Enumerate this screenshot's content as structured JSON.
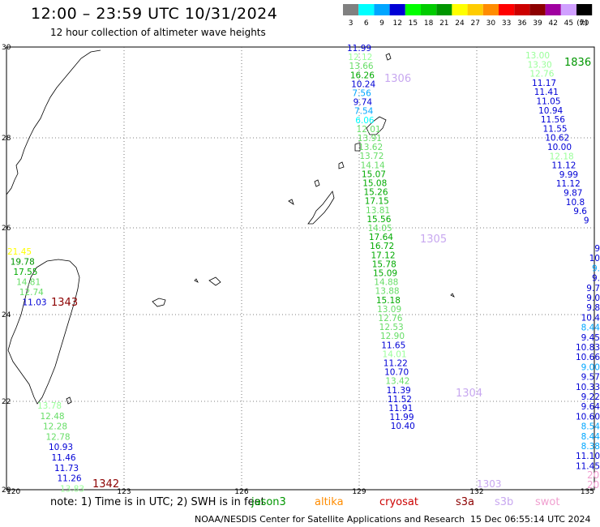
{
  "header": {
    "title": "12:00 – 23:59 UTC 10/31/2024",
    "subtitle": "12 hour collection of altimeter wave heights"
  },
  "legend": {
    "unit": "(ft)",
    "bins": [
      {
        "label": "3",
        "color": "#808080"
      },
      {
        "label": "6",
        "color": "#00ffff"
      },
      {
        "label": "9",
        "color": "#00a6ff"
      },
      {
        "label": "12",
        "color": "#0000d6"
      },
      {
        "label": "15",
        "color": "#00ff00"
      },
      {
        "label": "18",
        "color": "#00cc00"
      },
      {
        "label": "21",
        "color": "#009600"
      },
      {
        "label": "24",
        "color": "#ffff00"
      },
      {
        "label": "27",
        "color": "#ffcc00"
      },
      {
        "label": "30",
        "color": "#ff8c00"
      },
      {
        "label": "33",
        "color": "#ff0000"
      },
      {
        "label": "36",
        "color": "#cc0000"
      },
      {
        "label": "39",
        "color": "#8c0000"
      },
      {
        "label": "42",
        "color": "#a000a0"
      },
      {
        "label": "45",
        "color": "#d0a0ff"
      },
      {
        "label": "70",
        "color": "#000000"
      }
    ]
  },
  "axes": {
    "x_ticks": [
      "120",
      "123",
      "126",
      "129",
      "132",
      "135"
    ],
    "y_ticks": [
      "30",
      "28",
      "26",
      "24",
      "22",
      "20"
    ]
  },
  "passes": [
    {
      "name": "track-129",
      "readings": [
        [
          "11.99",
          "#0000d6"
        ],
        [
          "12.12",
          "#99ff99"
        ],
        [
          "13.66",
          "#66dd66"
        ],
        [
          "16.26",
          "#00aa00"
        ],
        [
          "10.24",
          "#0000d6"
        ],
        [
          "7.56",
          "#00a6ff"
        ],
        [
          "9.74",
          "#0000d6"
        ],
        [
          "7.54",
          "#00a6ff"
        ],
        [
          "6.06",
          "#00ffff"
        ],
        [
          "12.01",
          "#66dd66"
        ],
        [
          "13.91",
          "#66dd66"
        ],
        [
          "13.62",
          "#66dd66"
        ],
        [
          "13.72",
          "#66dd66"
        ],
        [
          "14.14",
          "#66dd66"
        ],
        [
          "15.07",
          "#00aa00"
        ],
        [
          "15.08",
          "#00aa00"
        ],
        [
          "15.26",
          "#00aa00"
        ],
        [
          "17.15",
          "#00aa00"
        ],
        [
          "13.81",
          "#66dd66"
        ],
        [
          "15.56",
          "#00aa00"
        ],
        [
          "14.05",
          "#66dd66"
        ],
        [
          "17.64",
          "#00aa00"
        ],
        [
          "16.72",
          "#00aa00"
        ],
        [
          "17.12",
          "#00aa00"
        ],
        [
          "15.78",
          "#00aa00"
        ],
        [
          "15.09",
          "#00aa00"
        ],
        [
          "14.88",
          "#66dd66"
        ],
        [
          "13.88",
          "#66dd66"
        ],
        [
          "15.18",
          "#00aa00"
        ],
        [
          "13.09",
          "#66dd66"
        ],
        [
          "12.76",
          "#66dd66"
        ],
        [
          "12.53",
          "#66dd66"
        ],
        [
          "12.90",
          "#66dd66"
        ],
        [
          "11.65",
          "#0000d6"
        ],
        [
          "14.01",
          "#99ff99"
        ],
        [
          "11.22",
          "#0000d6"
        ],
        [
          "10.70",
          "#0000d6"
        ],
        [
          "13.42",
          "#66dd66"
        ],
        [
          "11.39",
          "#0000d6"
        ],
        [
          "11.52",
          "#0000d6"
        ],
        [
          "11.91",
          "#0000d6"
        ],
        [
          "11.99",
          "#0000d6"
        ],
        [
          "10.40",
          "#0000d6"
        ]
      ]
    },
    {
      "name": "track-133",
      "readings": [
        [
          "13.00",
          "#99ff99"
        ],
        [
          "13.30",
          "#99ff99"
        ],
        [
          "12.76",
          "#99ff99"
        ],
        [
          "11.17",
          "#0000d6"
        ],
        [
          "11.41",
          "#0000d6"
        ],
        [
          "11.05",
          "#0000d6"
        ],
        [
          "10.94",
          "#0000d6"
        ],
        [
          "11.56",
          "#0000d6"
        ],
        [
          "11.55",
          "#0000d6"
        ],
        [
          "10.62",
          "#0000d6"
        ],
        [
          "10.00",
          "#0000d6"
        ],
        [
          "12.18",
          "#99ff99"
        ],
        [
          "11.12",
          "#0000d6"
        ],
        [
          "9.99",
          "#0000d6"
        ],
        [
          "11.12",
          "#0000d6"
        ],
        [
          "9.87",
          "#0000d6"
        ],
        [
          "10.8",
          "#0000d6"
        ],
        [
          "9.6",
          "#0000d6"
        ],
        [
          "9",
          "#0000d6"
        ]
      ]
    },
    {
      "name": "track-135",
      "readings": [
        [
          "9",
          "#0000d6"
        ],
        [
          "10",
          "#0000d6"
        ],
        [
          "9.",
          "#00a6ff"
        ],
        [
          "9.",
          "#0000d6"
        ],
        [
          "9.7",
          "#0000d6"
        ],
        [
          "9.0",
          "#0000d6"
        ],
        [
          "9.8",
          "#0000d6"
        ],
        [
          "10.4",
          "#0000d6"
        ],
        [
          "8.44",
          "#00a6ff"
        ],
        [
          "9.45",
          "#0000d6"
        ],
        [
          "10.83",
          "#0000d6"
        ],
        [
          "10.66",
          "#0000d6"
        ],
        [
          "9.00",
          "#00a6ff"
        ],
        [
          "9.57",
          "#0000d6"
        ],
        [
          "10.33",
          "#0000d6"
        ],
        [
          "9.22",
          "#0000d6"
        ],
        [
          "9.64",
          "#0000d6"
        ],
        [
          "10.60",
          "#0000d6"
        ],
        [
          "8.54",
          "#00a6ff"
        ],
        [
          "8.44",
          "#00a6ff"
        ],
        [
          "8.38",
          "#00a6ff"
        ],
        [
          "11.10",
          "#0000d6"
        ],
        [
          "11.45",
          "#0000d6"
        ]
      ]
    },
    {
      "name": "track-121-north",
      "readings": [
        [
          "21.45",
          "#ffff00"
        ],
        [
          "19.78",
          "#009600"
        ],
        [
          "17.55",
          "#00aa00"
        ],
        [
          "14.81",
          "#66dd66"
        ],
        [
          "12.74",
          "#66dd66"
        ],
        [
          "11.03",
          "#0000d6"
        ]
      ]
    },
    {
      "name": "track-121-south",
      "readings": [
        [
          "13.78",
          "#99ff99"
        ],
        [
          "12.48",
          "#66dd66"
        ],
        [
          "12.28",
          "#66dd66"
        ],
        [
          "12.78",
          "#66dd66"
        ],
        [
          "10.93",
          "#0000d6"
        ],
        [
          "11.46",
          "#0000d6"
        ],
        [
          "11.73",
          "#0000d6"
        ],
        [
          "11.26",
          "#0000d6"
        ],
        [
          "13.83",
          "#99ff99"
        ]
      ]
    }
  ],
  "time_labels": [
    {
      "text": "1836",
      "color": "#009600"
    },
    {
      "text": "1306",
      "color": "#c8a8f0"
    },
    {
      "text": "1305",
      "color": "#c8a8f0"
    },
    {
      "text": "1304",
      "color": "#c8a8f0"
    },
    {
      "text": "1303",
      "color": "#c8a8f0"
    },
    {
      "text": "1343",
      "color": "#8c0000"
    },
    {
      "text": "1342",
      "color": "#8c0000"
    },
    {
      "text": "20",
      "color": "#f0a0d0"
    },
    {
      "text": "20",
      "color": "#f0a0d0"
    }
  ],
  "footer": {
    "note": "note: 1) Time is in UTC; 2) SWH is in feet",
    "satellites": [
      {
        "name": "jason3",
        "color": "#009600"
      },
      {
        "name": "altika",
        "color": "#ff8c00"
      },
      {
        "name": "cryosat",
        "color": "#cc0000"
      },
      {
        "name": "s3a",
        "color": "#8c0000"
      },
      {
        "name": "s3b",
        "color": "#c8a8f0"
      },
      {
        "name": "swot",
        "color": "#f0a0d0"
      }
    ],
    "credit": "NOAA/NESDIS Center for Satellite Applications and Research",
    "timestamp": "15 Dec 06:55:14 UTC 2024"
  }
}
